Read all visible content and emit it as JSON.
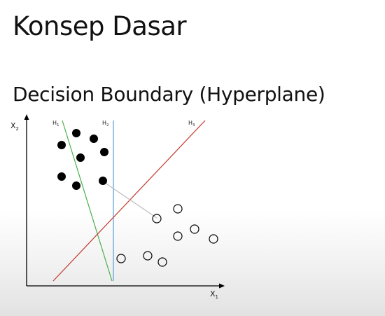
{
  "slide": {
    "title": "Konsep Dasar",
    "subtitle": "Decision Boundary (Hyperplane)"
  },
  "diagram": {
    "axis_x": {
      "label": "X",
      "subscript": "1"
    },
    "axis_y": {
      "label": "X",
      "subscript": "2"
    },
    "hyperplanes": [
      {
        "label": "H",
        "subscript": "1",
        "color": "#4caf50"
      },
      {
        "label": "H",
        "subscript": "2",
        "color": "#5b9bd5"
      },
      {
        "label": "H",
        "subscript": "3",
        "color": "#c0392b"
      }
    ],
    "class_positive": {
      "marker": "filled-circle",
      "color": "#000000"
    },
    "class_negative": {
      "marker": "hollow-circle",
      "color": "#000000"
    }
  }
}
